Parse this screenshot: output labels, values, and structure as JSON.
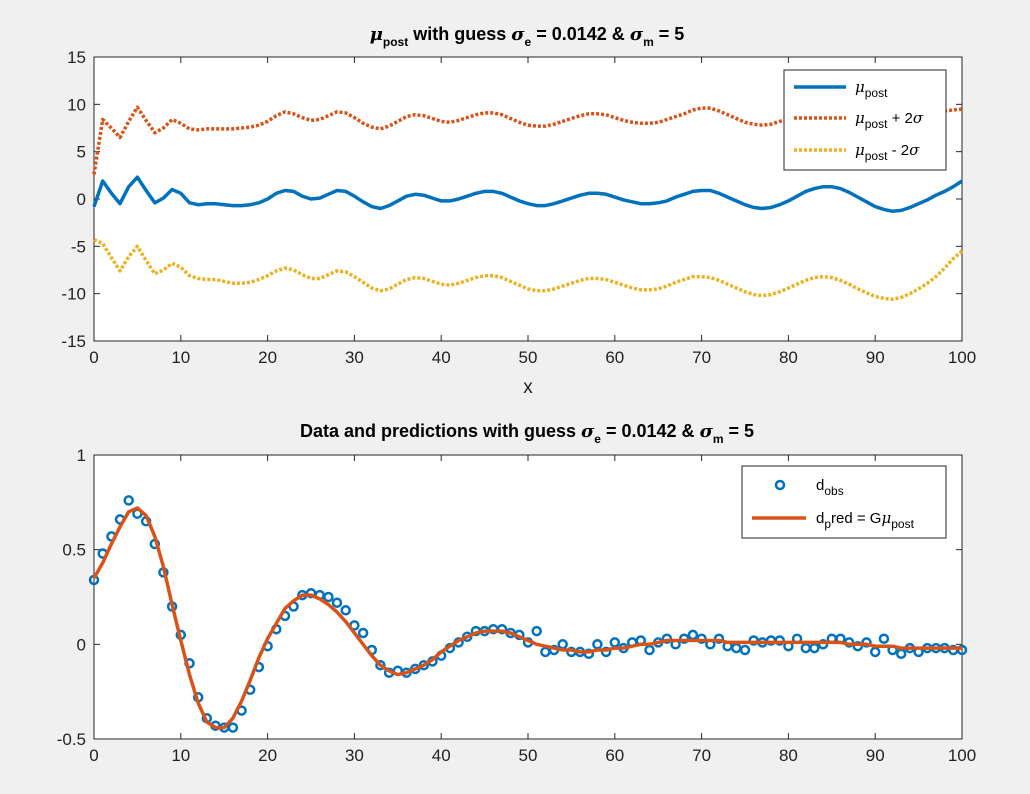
{
  "chart_data": [
    {
      "type": "line",
      "title": {
        "greek_mu": "μ",
        "mu_sub": "post",
        "mid": " with guess ",
        "sigma": "σ",
        "e_sub": "e",
        "e_val": " = 0.0142 & ",
        "m_sub": "m",
        "m_val": " = 5"
      },
      "xlabel": "x",
      "ylabel": "",
      "xlim": [
        0,
        100
      ],
      "ylim": [
        -15,
        15
      ],
      "xticks": [
        0,
        10,
        20,
        30,
        40,
        50,
        60,
        70,
        80,
        90,
        100
      ],
      "yticks": [
        -15,
        -10,
        -5,
        0,
        5,
        10,
        15
      ],
      "x": [
        0,
        1,
        2,
        3,
        4,
        5,
        6,
        7,
        8,
        9,
        10,
        11,
        12,
        13,
        14,
        15,
        16,
        17,
        18,
        19,
        20,
        21,
        22,
        23,
        24,
        25,
        26,
        27,
        28,
        29,
        30,
        31,
        32,
        33,
        34,
        35,
        36,
        37,
        38,
        39,
        40,
        41,
        42,
        43,
        44,
        45,
        46,
        47,
        48,
        49,
        50,
        51,
        52,
        53,
        54,
        55,
        56,
        57,
        58,
        59,
        60,
        61,
        62,
        63,
        64,
        65,
        66,
        67,
        68,
        69,
        70,
        71,
        72,
        73,
        74,
        75,
        76,
        77,
        78,
        79,
        80,
        81,
        82,
        83,
        84,
        85,
        86,
        87,
        88,
        89,
        90,
        91,
        92,
        93,
        94,
        95,
        96,
        97,
        98,
        99,
        100
      ],
      "series": [
        {
          "key": "mu",
          "color": "#0072bd",
          "dash": "solid",
          "values": [
            -0.8,
            1.9,
            0.6,
            -0.5,
            1.3,
            2.3,
            0.9,
            -0.4,
            0.1,
            1.0,
            0.6,
            -0.4,
            -0.6,
            -0.5,
            -0.5,
            -0.6,
            -0.7,
            -0.7,
            -0.6,
            -0.4,
            0.0,
            0.6,
            0.9,
            0.8,
            0.3,
            0.0,
            0.1,
            0.5,
            0.9,
            0.8,
            0.3,
            -0.3,
            -0.8,
            -1.0,
            -0.7,
            -0.2,
            0.3,
            0.5,
            0.4,
            0.1,
            -0.2,
            -0.2,
            0.0,
            0.3,
            0.6,
            0.8,
            0.8,
            0.6,
            0.2,
            -0.2,
            -0.5,
            -0.7,
            -0.7,
            -0.5,
            -0.2,
            0.1,
            0.4,
            0.6,
            0.6,
            0.5,
            0.2,
            -0.1,
            -0.3,
            -0.5,
            -0.5,
            -0.4,
            -0.2,
            0.2,
            0.5,
            0.8,
            0.9,
            0.9,
            0.6,
            0.2,
            -0.2,
            -0.6,
            -0.9,
            -1.0,
            -0.9,
            -0.6,
            -0.2,
            0.3,
            0.8,
            1.1,
            1.3,
            1.3,
            1.1,
            0.7,
            0.2,
            -0.3,
            -0.8,
            -1.1,
            -1.3,
            -1.2,
            -0.9,
            -0.5,
            -0.1,
            0.4,
            0.8,
            1.3,
            1.9
          ]
        },
        {
          "key": "upper",
          "color": "#d95319",
          "dash": "dotted",
          "values": [
            2.6,
            8.4,
            7.5,
            6.5,
            8.2,
            9.7,
            8.3,
            7.0,
            7.5,
            8.4,
            8.0,
            7.4,
            7.3,
            7.4,
            7.4,
            7.4,
            7.4,
            7.5,
            7.6,
            7.8,
            8.2,
            8.8,
            9.2,
            9.0,
            8.6,
            8.3,
            8.4,
            8.8,
            9.2,
            9.1,
            8.6,
            8.0,
            7.6,
            7.4,
            7.7,
            8.2,
            8.7,
            8.9,
            8.8,
            8.5,
            8.2,
            8.1,
            8.3,
            8.6,
            8.9,
            9.1,
            9.1,
            8.9,
            8.5,
            8.1,
            7.8,
            7.7,
            7.7,
            7.9,
            8.2,
            8.5,
            8.8,
            9.0,
            9.0,
            8.9,
            8.6,
            8.3,
            8.1,
            8.0,
            8.0,
            8.1,
            8.4,
            8.7,
            9.0,
            9.4,
            9.6,
            9.6,
            9.3,
            8.9,
            8.5,
            8.1,
            7.9,
            7.8,
            7.9,
            8.2,
            8.5,
            8.9,
            9.4,
            9.7,
            9.9,
            9.9,
            9.7,
            9.3,
            8.9,
            8.5,
            8.1,
            7.8,
            7.6,
            7.7,
            8.0,
            8.4,
            8.8,
            9.1,
            9.3,
            9.4,
            9.5
          ]
        },
        {
          "key": "lower",
          "color": "#edb120",
          "dash": "dotted",
          "values": [
            -4.3,
            -4.7,
            -6.2,
            -7.6,
            -6.1,
            -5.0,
            -6.5,
            -7.9,
            -7.5,
            -6.8,
            -7.2,
            -8.1,
            -8.4,
            -8.5,
            -8.5,
            -8.7,
            -8.9,
            -8.9,
            -8.8,
            -8.5,
            -8.1,
            -7.6,
            -7.3,
            -7.5,
            -8.0,
            -8.4,
            -8.4,
            -8.0,
            -7.6,
            -7.7,
            -8.2,
            -8.8,
            -9.4,
            -9.7,
            -9.5,
            -9.0,
            -8.5,
            -8.3,
            -8.4,
            -8.7,
            -9.0,
            -9.1,
            -8.9,
            -8.6,
            -8.3,
            -8.1,
            -8.1,
            -8.3,
            -8.7,
            -9.1,
            -9.5,
            -9.7,
            -9.7,
            -9.5,
            -9.2,
            -8.9,
            -8.6,
            -8.4,
            -8.4,
            -8.5,
            -8.8,
            -9.1,
            -9.4,
            -9.6,
            -9.6,
            -9.5,
            -9.2,
            -8.8,
            -8.5,
            -8.2,
            -8.2,
            -8.3,
            -8.6,
            -9.0,
            -9.4,
            -9.8,
            -10.1,
            -10.2,
            -10.1,
            -9.8,
            -9.4,
            -9.0,
            -8.6,
            -8.3,
            -8.2,
            -8.3,
            -8.6,
            -9.0,
            -9.5,
            -9.9,
            -10.3,
            -10.5,
            -10.6,
            -10.4,
            -10.0,
            -9.5,
            -8.9,
            -8.2,
            -7.3,
            -6.3,
            -5.5
          ]
        }
      ],
      "legend": {
        "placement": "top-right",
        "mu_label": "μ",
        "mu_sub": "post",
        "plus_suffix": " + 2",
        "minus_suffix": " - 2",
        "sigma": "σ"
      }
    },
    {
      "type": "scatter",
      "title": {
        "prefix": "Data and predictions with guess ",
        "sigma": "σ",
        "e_sub": "e",
        "e_val": " = 0.0142 & ",
        "m_sub": "m",
        "m_val": " = 5"
      },
      "xlim": [
        0,
        100
      ],
      "ylim": [
        -0.5,
        1
      ],
      "xticks": [
        0,
        10,
        20,
        30,
        40,
        50,
        60,
        70,
        80,
        90,
        100
      ],
      "yticks": [
        -0.5,
        0,
        0.5,
        1
      ],
      "x": [
        0,
        1,
        2,
        3,
        4,
        5,
        6,
        7,
        8,
        9,
        10,
        11,
        12,
        13,
        14,
        15,
        16,
        17,
        18,
        19,
        20,
        21,
        22,
        23,
        24,
        25,
        26,
        27,
        28,
        29,
        30,
        31,
        32,
        33,
        34,
        35,
        36,
        37,
        38,
        39,
        40,
        41,
        42,
        43,
        44,
        45,
        46,
        47,
        48,
        49,
        50,
        51,
        52,
        53,
        54,
        55,
        56,
        57,
        58,
        59,
        60,
        61,
        62,
        63,
        64,
        65,
        66,
        67,
        68,
        69,
        70,
        71,
        72,
        73,
        74,
        75,
        76,
        77,
        78,
        79,
        80,
        81,
        82,
        83,
        84,
        85,
        86,
        87,
        88,
        89,
        90,
        91,
        92,
        93,
        94,
        95,
        96,
        97,
        98,
        99,
        100
      ],
      "series": [
        {
          "key": "dobs",
          "color": "#0072bd",
          "marker": "o",
          "values": [
            0.34,
            0.48,
            0.57,
            0.66,
            0.76,
            0.69,
            0.65,
            0.53,
            0.38,
            0.2,
            0.05,
            -0.1,
            -0.28,
            -0.39,
            -0.43,
            -0.44,
            -0.44,
            -0.35,
            -0.24,
            -0.12,
            -0.01,
            0.08,
            0.15,
            0.2,
            0.26,
            0.27,
            0.26,
            0.25,
            0.22,
            0.18,
            0.1,
            0.06,
            -0.03,
            -0.11,
            -0.15,
            -0.14,
            -0.15,
            -0.13,
            -0.11,
            -0.09,
            -0.06,
            -0.02,
            0.01,
            0.04,
            0.07,
            0.07,
            0.08,
            0.08,
            0.06,
            0.05,
            0.01,
            0.07,
            -0.04,
            -0.03,
            0.0,
            -0.04,
            -0.04,
            -0.05,
            0.0,
            -0.04,
            0.01,
            -0.02,
            0.01,
            0.02,
            -0.03,
            0.01,
            0.03,
            0.0,
            0.03,
            0.05,
            0.03,
            0.0,
            0.03,
            -0.01,
            -0.02,
            -0.03,
            0.02,
            0.01,
            0.02,
            0.02,
            -0.01,
            0.03,
            -0.02,
            -0.02,
            0.0,
            0.03,
            0.03,
            0.01,
            -0.01,
            0.01,
            -0.04,
            0.03,
            -0.03,
            -0.05,
            -0.02,
            -0.04,
            -0.02,
            -0.02,
            -0.02,
            -0.03,
            -0.03
          ]
        },
        {
          "key": "dpred",
          "color": "#d95319",
          "marker": "line",
          "values": [
            0.35,
            0.43,
            0.53,
            0.62,
            0.7,
            0.72,
            0.68,
            0.57,
            0.41,
            0.21,
            0.02,
            -0.16,
            -0.31,
            -0.41,
            -0.44,
            -0.44,
            -0.39,
            -0.3,
            -0.19,
            -0.07,
            0.03,
            0.11,
            0.19,
            0.23,
            0.26,
            0.26,
            0.24,
            0.21,
            0.17,
            0.12,
            0.06,
            0.0,
            -0.06,
            -0.11,
            -0.14,
            -0.16,
            -0.15,
            -0.13,
            -0.11,
            -0.08,
            -0.04,
            -0.01,
            0.02,
            0.04,
            0.06,
            0.07,
            0.07,
            0.07,
            0.06,
            0.04,
            0.02,
            0.0,
            -0.01,
            -0.02,
            -0.03,
            -0.03,
            -0.04,
            -0.04,
            -0.03,
            -0.03,
            -0.02,
            -0.02,
            -0.01,
            0.0,
            0.0,
            0.01,
            0.02,
            0.02,
            0.02,
            0.02,
            0.02,
            0.02,
            0.02,
            0.01,
            0.01,
            0.01,
            0.01,
            0.01,
            0.01,
            0.01,
            0.01,
            0.01,
            0.01,
            0.01,
            0.01,
            0.01,
            0.01,
            0.0,
            0.0,
            0.0,
            -0.01,
            -0.01,
            -0.01,
            -0.02,
            -0.02,
            -0.02,
            -0.02,
            -0.02,
            -0.02,
            -0.02,
            -0.02
          ]
        }
      ],
      "legend": {
        "placement": "top-right",
        "dobs_main": "d",
        "dobs_sub": "obs",
        "dpred_main": "d",
        "dpred_sub": "p",
        "dpred_rest": "red = G",
        "dpred_mu": "μ",
        "dpred_mu_sub": "post"
      }
    }
  ]
}
